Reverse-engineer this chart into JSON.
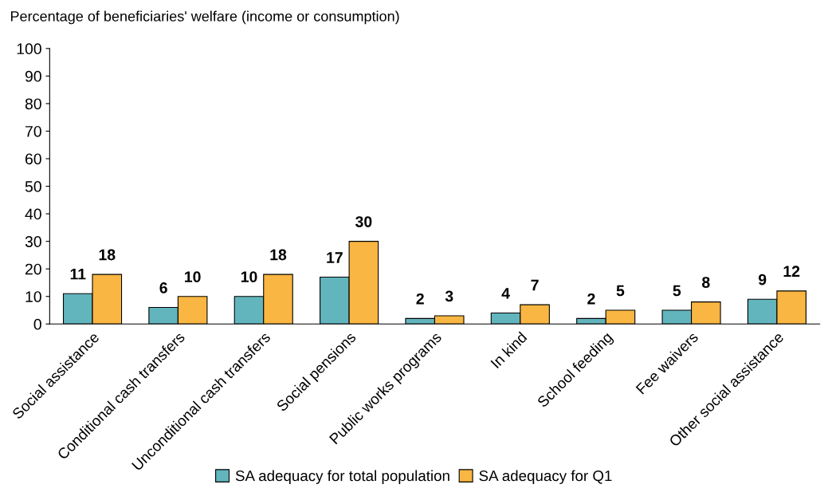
{
  "chart_data": {
    "type": "bar",
    "ylabel": "Percentage of beneficiaries' welfare (income or consumption)",
    "categories": [
      "Social assistance",
      "Conditional cash transfers",
      "Unconditional cash transfers",
      "Social pensions",
      "Public works programs",
      "In kind",
      "School feeding",
      "Fee waivers",
      "Other social assistance"
    ],
    "series": [
      {
        "name": "SA adequacy for total population",
        "color": "#62b5bd",
        "values": [
          11,
          6,
          10,
          17,
          2,
          4,
          2,
          5,
          9
        ]
      },
      {
        "name": "SA adequacy for Q1",
        "color": "#f9b642",
        "values": [
          18,
          10,
          18,
          30,
          3,
          7,
          5,
          8,
          12
        ]
      }
    ],
    "ylim": [
      0,
      100
    ],
    "yticks": [
      0,
      10,
      20,
      30,
      40,
      50,
      60,
      70,
      80,
      90,
      100
    ],
    "data_labels": true,
    "grid": false,
    "legend": "bottom"
  }
}
